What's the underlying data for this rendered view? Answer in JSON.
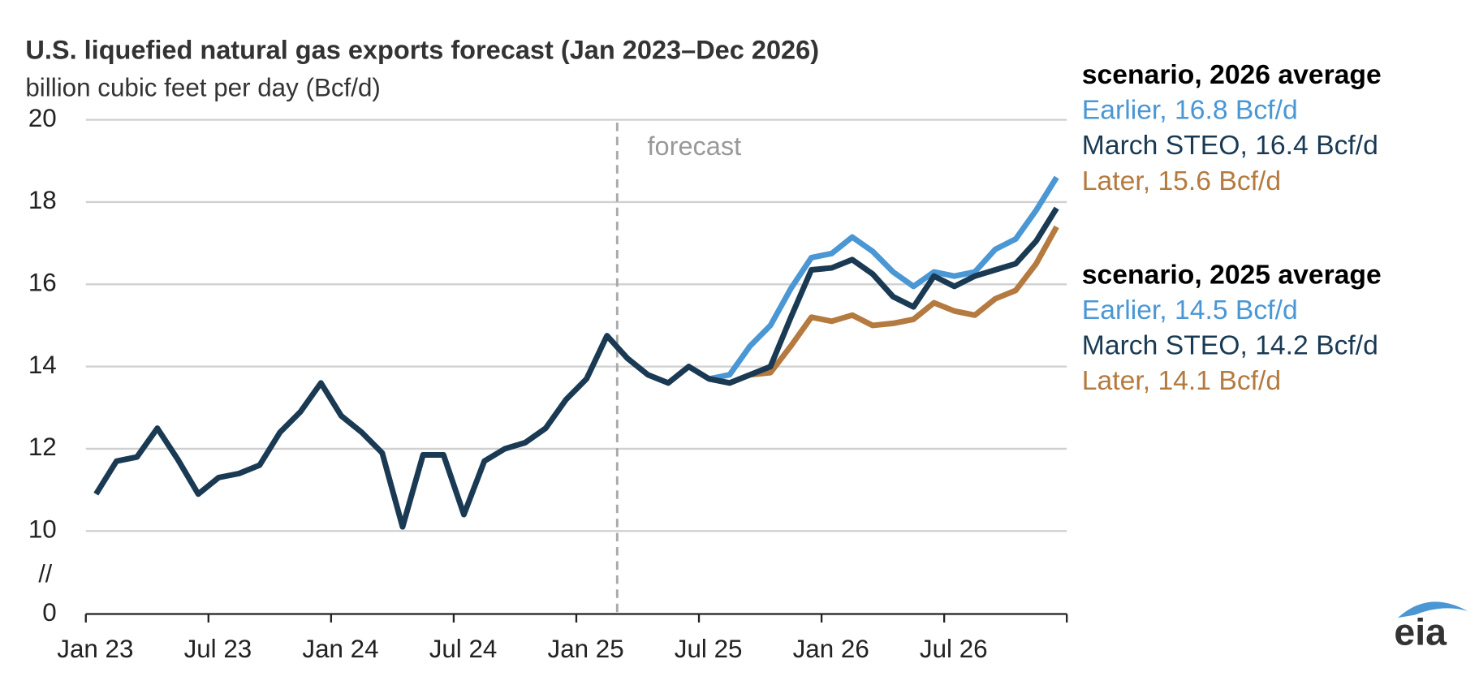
{
  "chart_data": {
    "type": "line",
    "title": "U.S. liquefied natural gas exports forecast (Jan 2023–Dec 2026)",
    "subtitle": "billion cubic feet per day (Bcf/d)",
    "annotation": "forecast",
    "forecast_start": "2025-03",
    "logo": "eia",
    "x": [
      "2023-01",
      "2023-02",
      "2023-03",
      "2023-04",
      "2023-05",
      "2023-06",
      "2023-07",
      "2023-08",
      "2023-09",
      "2023-10",
      "2023-11",
      "2023-12",
      "2024-01",
      "2024-02",
      "2024-03",
      "2024-04",
      "2024-05",
      "2024-06",
      "2024-07",
      "2024-08",
      "2024-09",
      "2024-10",
      "2024-11",
      "2024-12",
      "2025-01",
      "2025-02",
      "2025-03",
      "2025-04",
      "2025-05",
      "2025-06",
      "2025-07",
      "2025-08",
      "2025-09",
      "2025-10",
      "2025-11",
      "2025-12",
      "2026-01",
      "2026-02",
      "2026-03",
      "2026-04",
      "2026-05",
      "2026-06",
      "2026-07",
      "2026-08",
      "2026-09",
      "2026-10",
      "2026-11",
      "2026-12"
    ],
    "xticks": [
      {
        "value": "2023-01",
        "label": "Jan 23"
      },
      {
        "value": "2023-07",
        "label": "Jul 23"
      },
      {
        "value": "2024-01",
        "label": "Jan 24"
      },
      {
        "value": "2024-07",
        "label": "Jul 24"
      },
      {
        "value": "2025-01",
        "label": "Jan 25"
      },
      {
        "value": "2025-07",
        "label": "Jul 25"
      },
      {
        "value": "2026-01",
        "label": "Jan 26"
      },
      {
        "value": "2026-07",
        "label": "Jul 26"
      }
    ],
    "ylim": [
      0,
      20
    ],
    "yticks": [
      0,
      10,
      12,
      14,
      16,
      18,
      20
    ],
    "axis_break": {
      "range": [
        0,
        10
      ],
      "label": "//"
    },
    "grid": true,
    "series": [
      {
        "name": "March STEO",
        "color": "#1a3a54",
        "values": [
          10.9,
          11.7,
          11.8,
          12.5,
          11.74,
          10.9,
          11.3,
          11.4,
          11.6,
          12.4,
          12.9,
          13.6,
          12.8,
          12.4,
          11.9,
          10.1,
          11.85,
          11.85,
          10.4,
          11.7,
          12.0,
          12.15,
          12.5,
          13.2,
          13.7,
          14.75,
          14.2,
          13.8,
          13.6,
          14.0,
          13.7,
          13.6,
          13.8,
          14.0,
          15.2,
          16.35,
          16.4,
          16.6,
          16.25,
          15.7,
          15.45,
          16.2,
          15.95,
          16.2,
          16.35,
          16.5,
          17.05,
          17.85
        ]
      },
      {
        "name": "Earlier",
        "color": "#4a97d4",
        "values": [
          null,
          null,
          null,
          null,
          null,
          null,
          null,
          null,
          null,
          null,
          null,
          null,
          null,
          null,
          null,
          null,
          null,
          null,
          null,
          null,
          null,
          null,
          null,
          null,
          null,
          null,
          null,
          null,
          null,
          null,
          13.7,
          13.8,
          14.5,
          15.0,
          15.9,
          16.65,
          16.75,
          17.15,
          16.8,
          16.3,
          15.95,
          16.3,
          16.2,
          16.3,
          16.85,
          17.1,
          17.8,
          18.6
        ]
      },
      {
        "name": "Later",
        "color": "#b47a3f",
        "values": [
          null,
          null,
          null,
          null,
          null,
          null,
          null,
          null,
          null,
          null,
          null,
          null,
          null,
          null,
          null,
          null,
          null,
          null,
          null,
          null,
          null,
          null,
          null,
          null,
          null,
          null,
          null,
          null,
          null,
          null,
          13.7,
          13.6,
          13.8,
          13.85,
          14.5,
          15.2,
          15.1,
          15.25,
          15.0,
          15.05,
          15.15,
          15.55,
          15.35,
          15.25,
          15.65,
          15.85,
          16.5,
          17.4
        ]
      }
    ],
    "legend_groups": [
      {
        "title": "scenario, 2026 average",
        "entries": [
          {
            "series": 1,
            "label": "Earlier, 16.8 Bcf/d"
          },
          {
            "series": 0,
            "label": "March STEO, 16.4 Bcf/d"
          },
          {
            "series": 2,
            "label": "Later, 15.6 Bcf/d"
          }
        ]
      },
      {
        "title": "scenario, 2025 average",
        "entries": [
          {
            "series": 1,
            "label": "Earlier, 14.5 Bcf/d"
          },
          {
            "series": 0,
            "label": "March STEO, 14.2 Bcf/d"
          },
          {
            "series": 2,
            "label": "Later, 14.1 Bcf/d"
          }
        ]
      }
    ]
  }
}
